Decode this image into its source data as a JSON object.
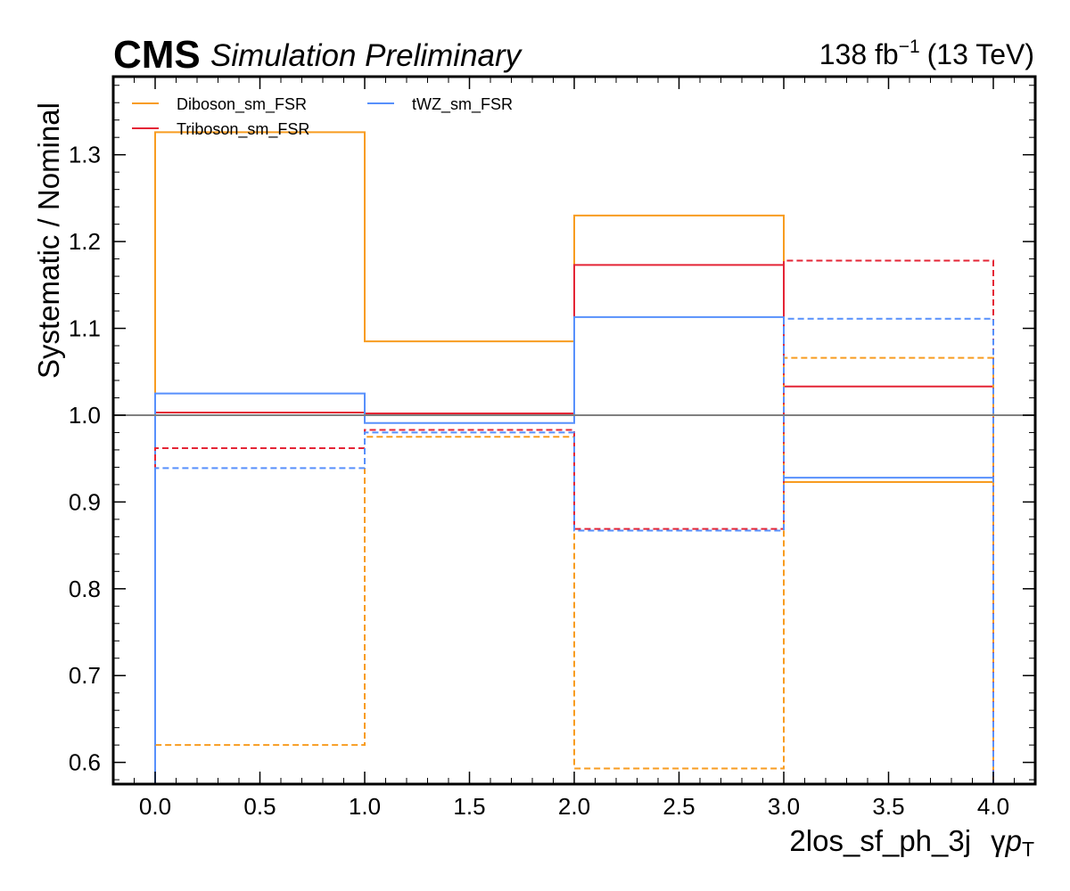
{
  "chart_data": {
    "type": "line",
    "header": {
      "experiment": "CMS",
      "status": "Simulation Preliminary",
      "lumi_value": "138 fb",
      "lumi_exponent": "−1",
      "energy": "(13 TeV)"
    },
    "xlabel": "2los_sf_ph_3j",
    "xlabel_symbol": "γ",
    "xlabel_var": "p",
    "xlabel_sub": "T",
    "ylabel": "Systematic / Nominal",
    "xlim": [
      -0.2,
      4.2
    ],
    "ylim": [
      0.575,
      1.39
    ],
    "xticks": [
      0.0,
      0.5,
      1.0,
      1.5,
      2.0,
      2.5,
      3.0,
      3.5,
      4.0
    ],
    "xtick_labels": [
      "0.0",
      "0.5",
      "1.0",
      "1.5",
      "2.0",
      "2.5",
      "3.0",
      "3.5",
      "4.0"
    ],
    "yticks": [
      0.6,
      0.7,
      0.8,
      0.9,
      1.0,
      1.1,
      1.2,
      1.3
    ],
    "ytick_labels": [
      "0.6",
      "0.7",
      "0.8",
      "0.9",
      "1.0",
      "1.1",
      "1.2",
      "1.3"
    ],
    "reference_line": 1.0,
    "bin_edges": [
      0,
      1,
      2,
      3,
      4
    ],
    "legend": {
      "placement": "top-left",
      "columns": 2
    },
    "series": [
      {
        "name": "Diboson_sm_FSR",
        "color": "#f89c20",
        "style": "solid",
        "values": [
          1.326,
          1.085,
          1.23,
          0.923
        ]
      },
      {
        "name": "Triboson_sm_FSR",
        "color": "#e42536",
        "style": "solid",
        "values": [
          1.003,
          1.002,
          1.173,
          1.033
        ]
      },
      {
        "name": "tWZ_sm_FSR",
        "color": "#5790fc",
        "style": "solid",
        "values": [
          1.025,
          0.991,
          1.113,
          0.928
        ]
      },
      {
        "color": "#f89c20",
        "style": "dashed",
        "values": [
          0.62,
          0.975,
          0.593,
          1.066
        ]
      },
      {
        "color": "#e42536",
        "style": "dashed",
        "values": [
          0.962,
          0.983,
          0.869,
          1.178
        ]
      },
      {
        "color": "#5790fc",
        "style": "dashed",
        "values": [
          0.939,
          0.98,
          0.867,
          1.111
        ]
      }
    ]
  }
}
